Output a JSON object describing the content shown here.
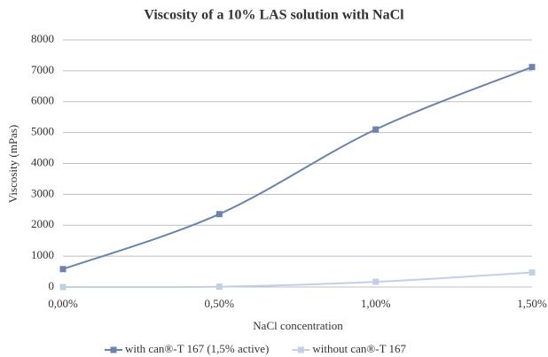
{
  "chart_data": {
    "type": "line",
    "title": "Viscosity of a 10% LAS solution with NaCl",
    "x_label": "NaCl concentration",
    "y_label": "Viscosity (mPas)",
    "categories": [
      "0,00%",
      "0,50%",
      "1,00%",
      "1,50%"
    ],
    "series": [
      {
        "name": "with can®-T 167 (1,5% active)",
        "color": "#6b84ad",
        "values": [
          580,
          2360,
          5100,
          7120
        ]
      },
      {
        "name": "without can®-T 167",
        "color": "#c3cfe3",
        "values": [
          0,
          10,
          170,
          470
        ]
      }
    ],
    "ylim": [
      0,
      8000
    ],
    "yticks": [
      0,
      1000,
      2000,
      3000,
      4000,
      5000,
      6000,
      7000,
      8000
    ],
    "grid": true,
    "smooth": true,
    "legend": "bottom"
  }
}
